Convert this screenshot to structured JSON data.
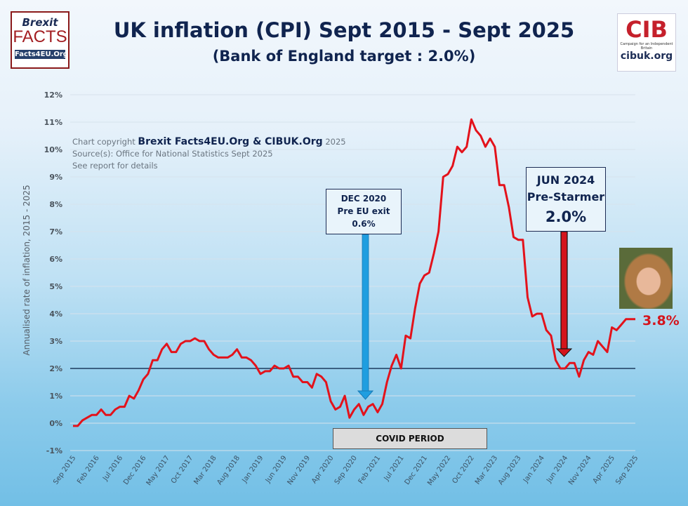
{
  "title": "UK inflation (CPI) Sept 2015 - Sept 2025",
  "subtitle": "(Bank of England target : 2.0%)",
  "logos": {
    "left": {
      "line1": "Brexit",
      "line2": "FACTS",
      "line3": "Facts4EU.Org"
    },
    "right": {
      "mark": "CIB",
      "tagline": "Campaign for an Independent Britain",
      "url": "cibuk.org"
    }
  },
  "credits": {
    "prefix": "Chart copyright",
    "owners": "Brexit Facts4EU.Org & CIBUK.Org",
    "year": "2025",
    "source": "Source(s): Office for National Statistics Sept 2025",
    "note": "See report for details"
  },
  "annotations": {
    "dec2020": {
      "line1": "DEC 2020",
      "line2": "Pre EU exit",
      "line3": "0.6%",
      "arrow_color": "#1f9ee0"
    },
    "jun2024": {
      "line1": "JUN 2024",
      "line2": "Pre-Starmer",
      "line3": "2.0%",
      "arrow_color": "#d4141c"
    },
    "covid": "COVID PERIOD",
    "latest": "3.8%"
  },
  "chart_data": {
    "type": "line",
    "title": "UK inflation (CPI) Sept 2015 - Sept 2025",
    "ylabel": "Annualised rate of inflation, 2015 - 2025",
    "xlabel": "",
    "ylim": [
      -1,
      12
    ],
    "yticks": [
      "-1%",
      "0%",
      "1%",
      "2%",
      "3%",
      "4%",
      "5%",
      "6%",
      "7%",
      "8%",
      "9%",
      "10%",
      "11%",
      "12%"
    ],
    "xticks": [
      "Sep 2015",
      "Feb 2016",
      "Jul 2016",
      "Dec 2016",
      "May 2017",
      "Oct 2017",
      "Mar 2018",
      "Aug 2018",
      "Jan 2019",
      "Jun 2019",
      "Nov 2019",
      "Apr 2020",
      "Sep 2020",
      "Feb 2021",
      "Jul 2021",
      "Dec 2021",
      "May 2022",
      "Oct 2022",
      "Mar 2023",
      "Aug 2023",
      "Jan 2024",
      "Jun 2024",
      "Nov 2024",
      "Apr 2025",
      "Sep 2025"
    ],
    "grid": true,
    "reference_line": {
      "value": 2.0,
      "color": "#1c3a5e"
    },
    "series_color": "#e3121b",
    "start": "Sep 2015",
    "frequency": "monthly",
    "values": [
      -0.1,
      -0.1,
      0.1,
      0.2,
      0.3,
      0.3,
      0.5,
      0.3,
      0.3,
      0.5,
      0.6,
      0.6,
      1.0,
      0.9,
      1.2,
      1.6,
      1.8,
      2.3,
      2.3,
      2.7,
      2.9,
      2.6,
      2.6,
      2.9,
      3.0,
      3.0,
      3.1,
      3.0,
      3.0,
      2.7,
      2.5,
      2.4,
      2.4,
      2.4,
      2.5,
      2.7,
      2.4,
      2.4,
      2.3,
      2.1,
      1.8,
      1.9,
      1.9,
      2.1,
      2.0,
      2.0,
      2.1,
      1.7,
      1.7,
      1.5,
      1.5,
      1.3,
      1.8,
      1.7,
      1.5,
      0.8,
      0.5,
      0.6,
      1.0,
      0.2,
      0.5,
      0.7,
      0.3,
      0.6,
      0.7,
      0.4,
      0.7,
      1.5,
      2.1,
      2.5,
      2.0,
      3.2,
      3.1,
      4.2,
      5.1,
      5.4,
      5.5,
      6.2,
      7.0,
      9.0,
      9.1,
      9.4,
      10.1,
      9.9,
      10.1,
      11.1,
      10.7,
      10.5,
      10.1,
      10.4,
      10.1,
      8.7,
      8.7,
      7.9,
      6.8,
      6.7,
      6.7,
      4.6,
      3.9,
      4.0,
      4.0,
      3.4,
      3.2,
      2.3,
      2.0,
      2.0,
      2.2,
      2.2,
      1.7,
      2.3,
      2.6,
      2.5,
      3.0,
      2.8,
      2.6,
      3.5,
      3.4,
      3.6,
      3.8,
      3.8,
      3.8
    ]
  }
}
